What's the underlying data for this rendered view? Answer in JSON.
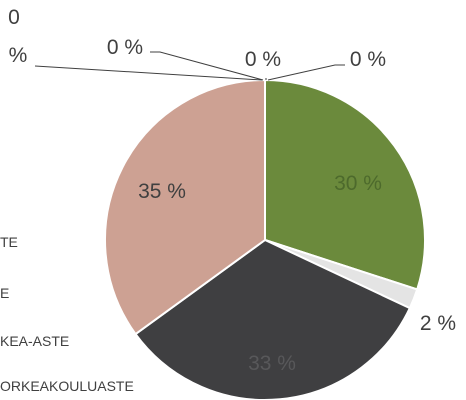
{
  "chart_data": {
    "type": "pie",
    "slices": [
      {
        "label": "30 %",
        "value": 30,
        "color": "#6b8a3c",
        "label_color": "#4d6a2c"
      },
      {
        "label": "2 %",
        "value": 2,
        "color": "#e4e4e4",
        "label_color": "#404040"
      },
      {
        "label": "33 %",
        "value": 33,
        "color": "#3f3f41",
        "label_color": "#58585a"
      },
      {
        "label": "35 %",
        "value": 35,
        "color": "#cda193",
        "label_color": "#404040"
      },
      {
        "label": "0 %",
        "value": 0,
        "color": "#404040",
        "label_color": "#404040"
      },
      {
        "label": "0 %",
        "value": 0,
        "color": "#404040",
        "label_color": "#404040"
      },
      {
        "label": "0 %",
        "value": 0,
        "color": "#404040",
        "label_color": "#404040"
      },
      {
        "label": "0 %",
        "value": 0,
        "color": "#404040",
        "label_color": "#404040"
      }
    ],
    "zero_callouts": [
      "0 %",
      "0 %",
      "0 %",
      "0 %"
    ],
    "legend": [
      "TE",
      "E",
      "KEA-ASTE",
      "ORKEAKOULUASTE"
    ]
  }
}
